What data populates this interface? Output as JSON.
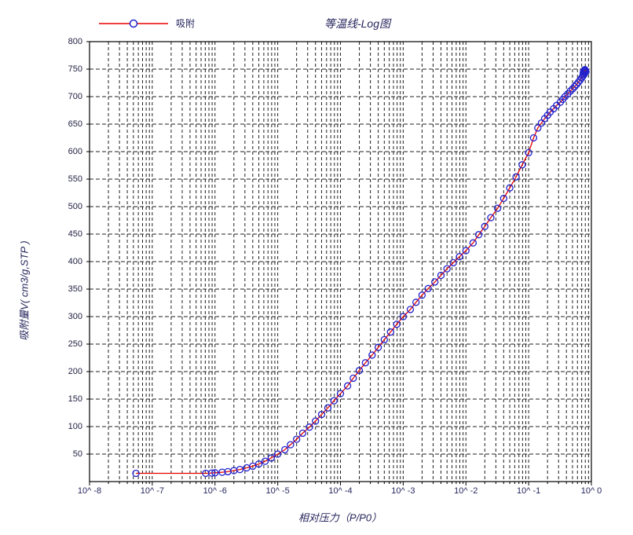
{
  "legend": {
    "label": "吸附"
  },
  "colors": {
    "line": "#e80000",
    "marker": "#2222cc",
    "marker_fill": "none",
    "grid": "#1f1f1f",
    "frame": "#000000",
    "tick_text": "#222244",
    "title_text": "#26265e",
    "background": "#ffffff"
  },
  "chart_data": {
    "type": "line",
    "title": "等温线-Log图",
    "xlabel": "相对压力（P/P0）",
    "ylabel": "吸附量V( cm3/g,STP )",
    "x_scale": "log",
    "xlim": [
      1e-08,
      1.0
    ],
    "ylim": [
      0,
      800
    ],
    "x_tick_exponents": [
      -8,
      -7,
      -6,
      -5,
      -4,
      -3,
      -2,
      -1,
      0
    ],
    "x_tick_labels": [
      "10^ -8",
      "10^ -7",
      "10^ -6",
      "10^ -5",
      "10^ -4",
      "10^ -3",
      "10^ -2",
      "10^ -1",
      "10^ 0"
    ],
    "y_ticks": [
      50,
      100,
      150,
      200,
      250,
      300,
      350,
      400,
      450,
      500,
      550,
      600,
      650,
      700,
      750,
      800
    ],
    "grid": "dashed; vertical at every log minor+major position, horizontal every 50",
    "legend_position": "top-left",
    "series": [
      {
        "name": "吸附",
        "line_color": "#e80000",
        "marker": "circle-open",
        "marker_color": "#2222cc",
        "points": [
          [
            5.5e-08,
            15
          ],
          [
            7.1e-07,
            15
          ],
          [
            8.9e-07,
            15.5
          ],
          [
            1e-06,
            16
          ],
          [
            1.3e-06,
            17
          ],
          [
            1.6e-06,
            18
          ],
          [
            2e-06,
            20
          ],
          [
            2.5e-06,
            22
          ],
          [
            3.2e-06,
            25
          ],
          [
            4e-06,
            28
          ],
          [
            5e-06,
            32
          ],
          [
            6.3e-06,
            37
          ],
          [
            7.9e-06,
            43
          ],
          [
            1e-05,
            50
          ],
          [
            1.3e-05,
            58
          ],
          [
            1.6e-05,
            67
          ],
          [
            2e-05,
            77
          ],
          [
            2.5e-05,
            88
          ],
          [
            3.2e-05,
            99
          ],
          [
            4e-05,
            110
          ],
          [
            5e-05,
            122
          ],
          [
            6.3e-05,
            134
          ],
          [
            7.9e-05,
            147
          ],
          [
            0.0001,
            160
          ],
          [
            0.00013,
            174
          ],
          [
            0.00016,
            188
          ],
          [
            0.0002,
            202
          ],
          [
            0.00025,
            216
          ],
          [
            0.00032,
            230
          ],
          [
            0.0004,
            244
          ],
          [
            0.0005,
            258
          ],
          [
            0.00063,
            272
          ],
          [
            0.00079,
            286
          ],
          [
            0.001,
            300
          ],
          [
            0.0013,
            313
          ],
          [
            0.0016,
            326
          ],
          [
            0.002,
            339
          ],
          [
            0.0025,
            351
          ],
          [
            0.0032,
            363
          ],
          [
            0.004,
            375
          ],
          [
            0.005,
            387
          ],
          [
            0.0063,
            398
          ],
          [
            0.0079,
            409
          ],
          [
            0.01,
            420
          ],
          [
            0.013,
            434
          ],
          [
            0.016,
            449
          ],
          [
            0.02,
            464
          ],
          [
            0.025,
            480
          ],
          [
            0.032,
            497
          ],
          [
            0.04,
            515
          ],
          [
            0.05,
            534
          ],
          [
            0.063,
            554
          ],
          [
            0.079,
            576
          ],
          [
            0.1,
            598
          ],
          [
            0.12,
            625
          ],
          [
            0.14,
            643
          ],
          [
            0.16,
            652
          ],
          [
            0.18,
            660
          ],
          [
            0.2,
            666
          ],
          [
            0.22,
            672
          ],
          [
            0.25,
            678
          ],
          [
            0.28,
            684
          ],
          [
            0.32,
            690
          ],
          [
            0.35,
            695
          ],
          [
            0.38,
            700
          ],
          [
            0.42,
            705
          ],
          [
            0.46,
            710
          ],
          [
            0.5,
            714
          ],
          [
            0.54,
            718
          ],
          [
            0.58,
            722
          ],
          [
            0.62,
            726
          ],
          [
            0.66,
            730
          ],
          [
            0.7,
            734
          ],
          [
            0.73,
            737
          ],
          [
            0.76,
            740
          ],
          [
            0.74,
            742
          ],
          [
            0.78,
            744
          ],
          [
            0.75,
            746
          ],
          [
            0.8,
            747
          ],
          [
            0.77,
            748
          ],
          [
            0.82,
            745
          ],
          [
            0.79,
            749
          ]
        ]
      }
    ]
  }
}
